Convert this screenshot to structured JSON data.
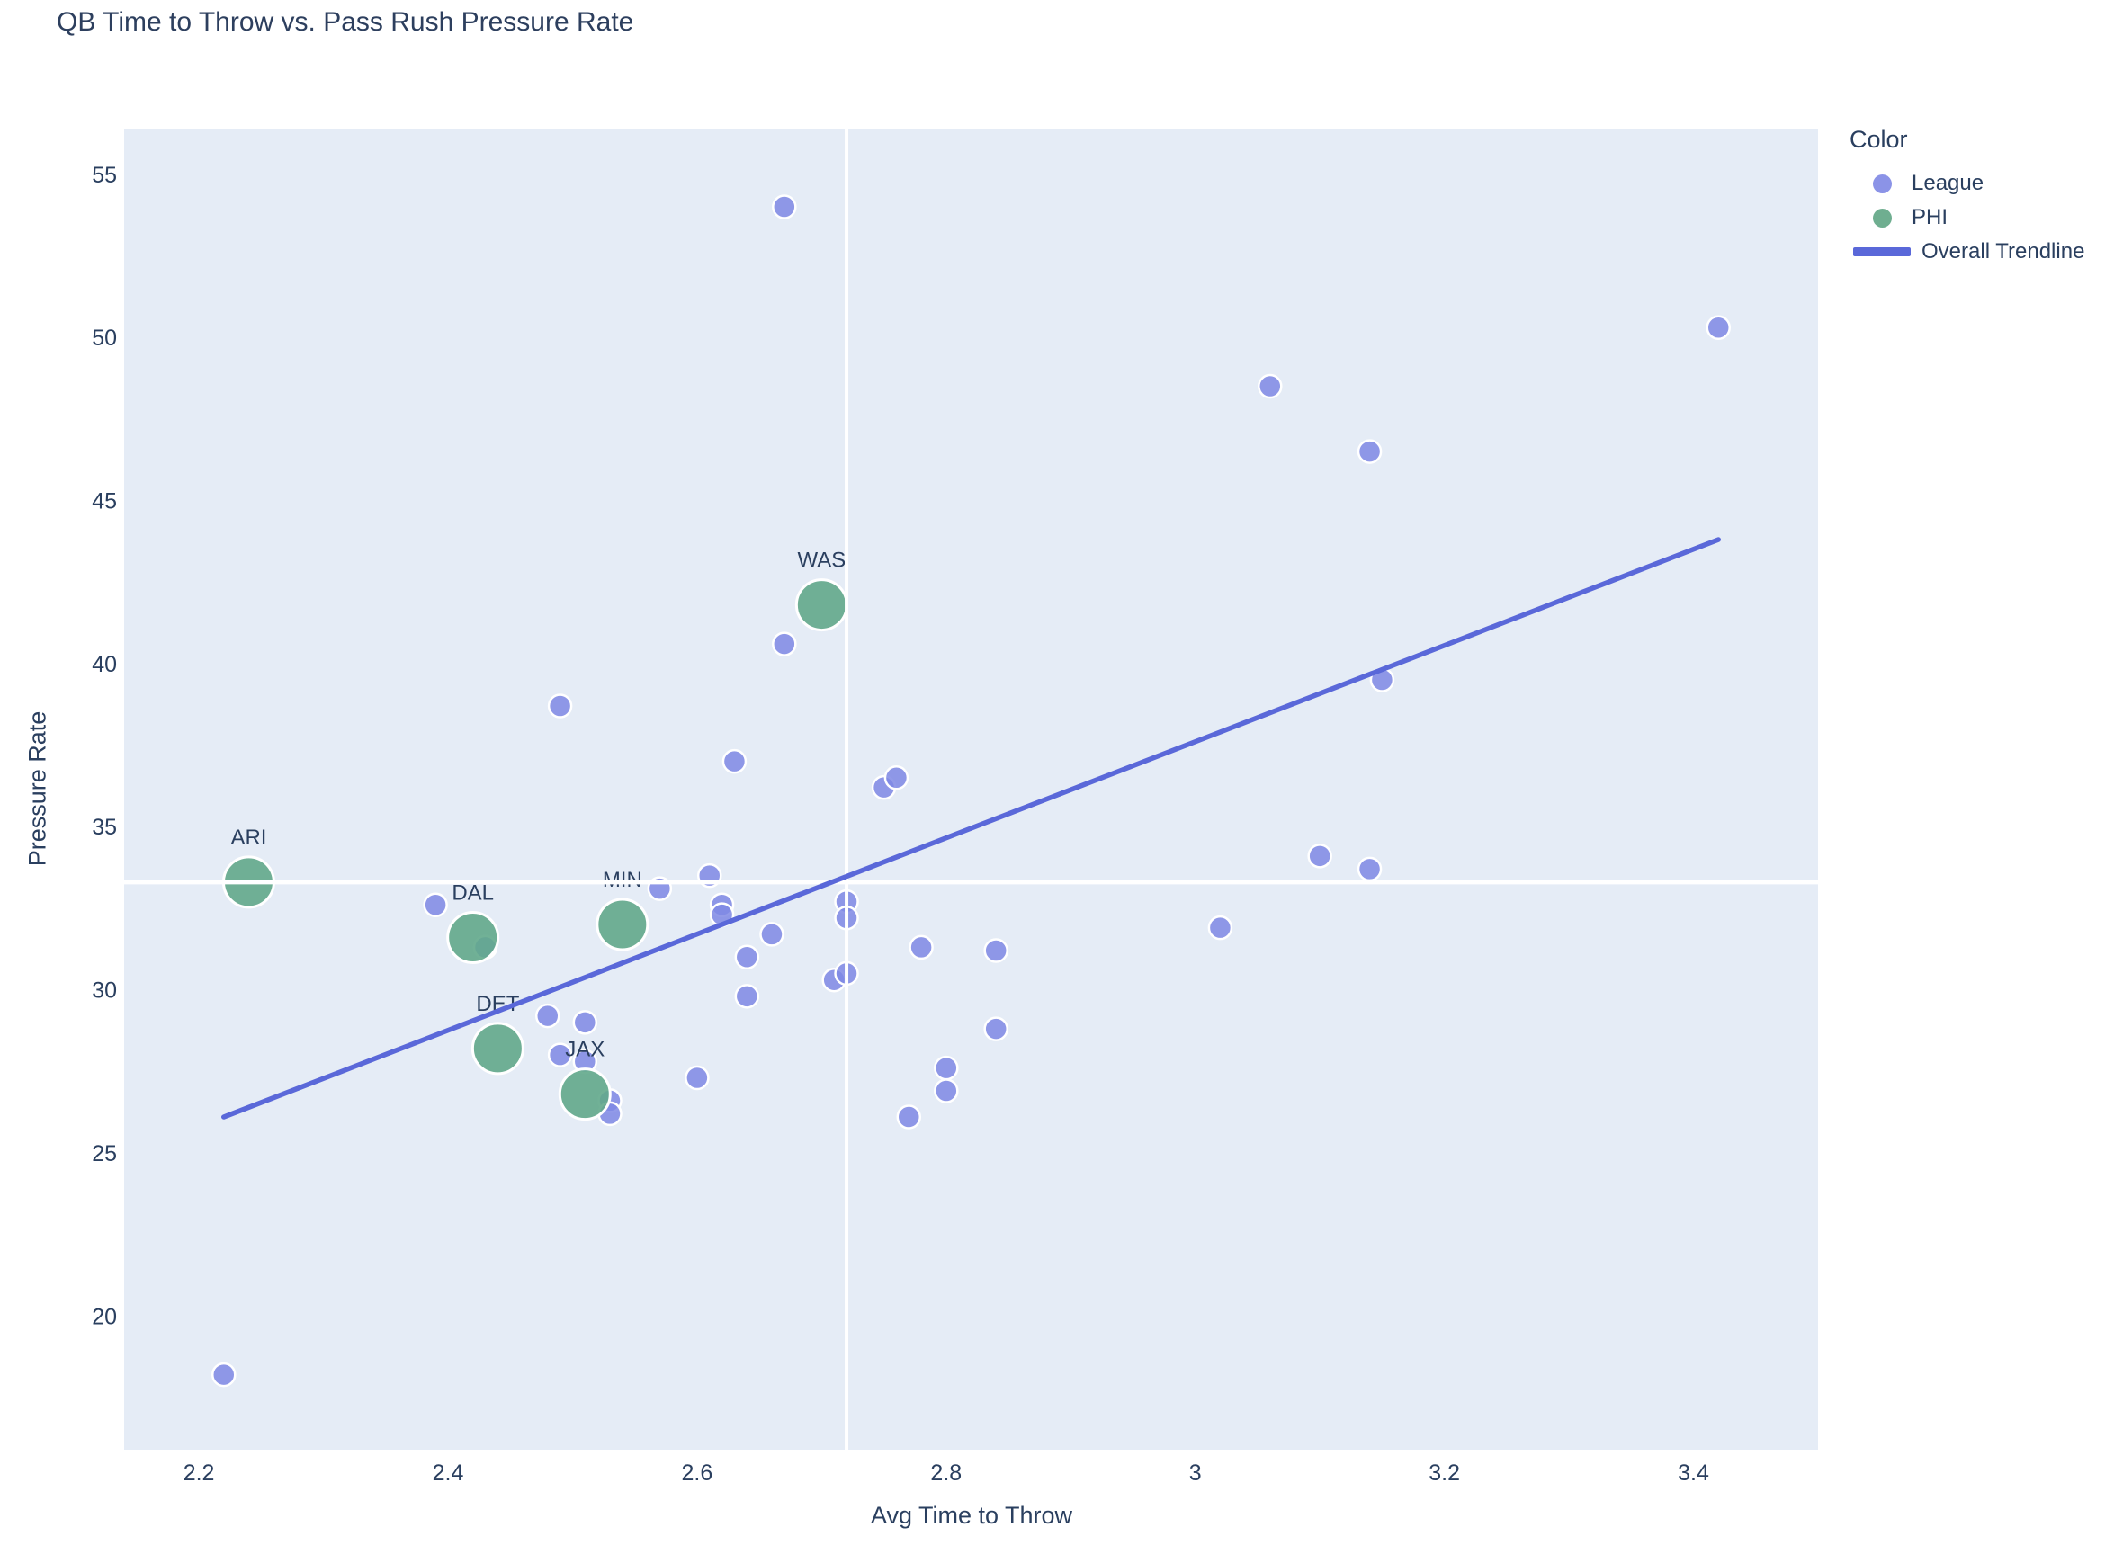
{
  "title": "QB Time to Throw vs. Pass Rush Pressure Rate",
  "chart_data": {
    "type": "scatter",
    "title": "QB Time to Throw vs. Pass Rush Pressure Rate",
    "xlabel": "Avg Time to Throw",
    "ylabel": "Pressure Rate",
    "xlim": [
      2.14,
      3.5
    ],
    "ylim": [
      15.9,
      56.4
    ],
    "x_ticks": [
      2.2,
      2.4,
      2.6,
      2.8,
      3.0,
      3.2,
      3.4
    ],
    "x_tick_labels": [
      "2.2",
      "2.4",
      "2.6",
      "2.8",
      "3",
      "3.2",
      "3.4"
    ],
    "y_ticks": [
      20,
      25,
      30,
      35,
      40,
      45,
      50,
      55
    ],
    "y_tick_labels": [
      "20",
      "25",
      "30",
      "35",
      "40",
      "45",
      "50",
      "55"
    ],
    "grid": false,
    "plot_bg_color": "#e5ecf6",
    "legend_position": "right",
    "legend_title": "Color",
    "reference_lines": {
      "x": 2.72,
      "y": 33.3,
      "color": "#ffffff"
    },
    "series": [
      {
        "name": "League",
        "type": "scatter",
        "color": "#7f88e4",
        "marker_radius": 12.5,
        "points": [
          [
            2.22,
            18.2
          ],
          [
            2.39,
            32.6
          ],
          [
            2.43,
            31.3
          ],
          [
            2.48,
            29.2
          ],
          [
            2.49,
            38.7
          ],
          [
            2.49,
            28.0
          ],
          [
            2.51,
            29.0
          ],
          [
            2.51,
            27.8
          ],
          [
            2.53,
            26.6
          ],
          [
            2.53,
            26.2
          ],
          [
            2.57,
            33.1
          ],
          [
            2.6,
            27.3
          ],
          [
            2.61,
            33.5
          ],
          [
            2.62,
            32.6
          ],
          [
            2.62,
            32.3
          ],
          [
            2.63,
            37.0
          ],
          [
            2.64,
            31.0
          ],
          [
            2.64,
            29.8
          ],
          [
            2.66,
            31.7
          ],
          [
            2.67,
            54.0
          ],
          [
            2.67,
            40.6
          ],
          [
            2.71,
            30.3
          ],
          [
            2.72,
            30.5
          ],
          [
            2.72,
            32.7
          ],
          [
            2.72,
            32.2
          ],
          [
            2.75,
            36.2
          ],
          [
            2.76,
            36.5
          ],
          [
            2.77,
            26.1
          ],
          [
            2.78,
            31.3
          ],
          [
            2.8,
            27.6
          ],
          [
            2.8,
            26.9
          ],
          [
            2.84,
            31.2
          ],
          [
            2.84,
            28.8
          ],
          [
            3.02,
            31.9
          ],
          [
            3.06,
            48.5
          ],
          [
            3.1,
            34.1
          ],
          [
            3.14,
            46.5
          ],
          [
            3.14,
            33.7
          ],
          [
            3.15,
            39.5
          ],
          [
            3.42,
            50.3
          ]
        ]
      },
      {
        "name": "PHI",
        "type": "scatter",
        "color": "#62a98b",
        "marker_radius": 28,
        "labeled_points": [
          {
            "label": "ARI",
            "x": 2.24,
            "y": 33.3
          },
          {
            "label": "DAL",
            "x": 2.42,
            "y": 31.6
          },
          {
            "label": "DET",
            "x": 2.44,
            "y": 28.2
          },
          {
            "label": "JAX",
            "x": 2.51,
            "y": 26.8
          },
          {
            "label": "MIN",
            "x": 2.54,
            "y": 32.0
          },
          {
            "label": "WAS",
            "x": 2.7,
            "y": 41.8
          }
        ]
      },
      {
        "name": "Overall Trendline",
        "type": "line",
        "color": "#5a68d9",
        "width": 5.5,
        "points": [
          [
            2.22,
            26.1
          ],
          [
            3.42,
            43.8
          ]
        ]
      }
    ]
  },
  "legend": {
    "title": "Color",
    "items": [
      {
        "label": "League",
        "swatch": "dot",
        "color": "#8b93e7"
      },
      {
        "label": "PHI",
        "swatch": "dot",
        "color": "#6fae90"
      },
      {
        "label": "Overall Trendline",
        "swatch": "line",
        "color": "#5a68d9"
      }
    ]
  },
  "axis": {
    "x_title": "Avg Time to Throw",
    "y_title": "Pressure Rate"
  },
  "colors": {
    "text": "#2a3f5f",
    "plot_background": "#e5ecf6",
    "page_background": "#ffffff"
  }
}
